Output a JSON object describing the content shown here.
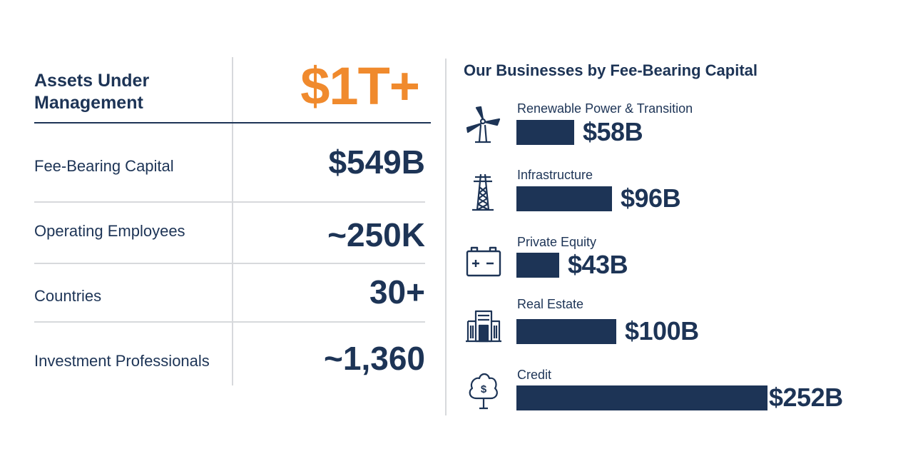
{
  "summary": {
    "aum_label": "Assets Under Management",
    "aum_value": "$1T+",
    "metrics": [
      {
        "label": "Fee-Bearing Capital",
        "value": "$549B"
      },
      {
        "label": "Operating Employees",
        "value": "~250K"
      },
      {
        "label": "Countries",
        "value": "30+"
      },
      {
        "label": "Investment Professionals",
        "value": "~1,360"
      }
    ]
  },
  "chart_data": {
    "type": "bar",
    "title": "Our Businesses by Fee-Bearing Capital",
    "categories": [
      "Renewable Power & Transition",
      "Infrastructure",
      "Private Equity",
      "Real Estate",
      "Credit"
    ],
    "values": [
      58,
      96,
      43,
      100,
      252
    ],
    "value_labels": [
      "$58B",
      "$96B",
      "$43B",
      "$100B",
      "$252B"
    ],
    "icons": [
      "wind-turbine-icon",
      "transmission-tower-icon",
      "battery-icon",
      "building-icon",
      "money-tree-icon"
    ],
    "orientation": "horizontal",
    "bar_color": "#1d3456"
  },
  "colors": {
    "accent": "#f08a2d",
    "navy": "#1d3456"
  }
}
